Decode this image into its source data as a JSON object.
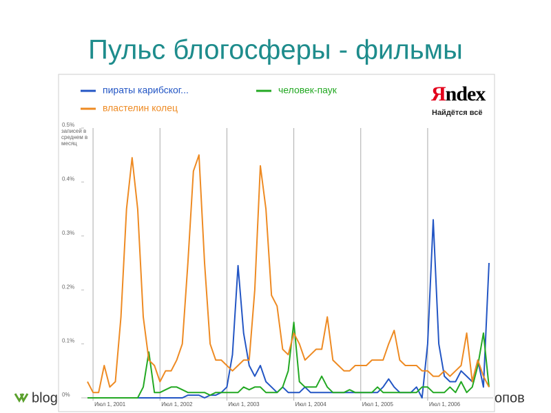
{
  "title": "Пульс блогосферы - фильмы",
  "footer": {
    "left": "blog",
    "right": "опов"
  },
  "logo": {
    "brand": "Яndex",
    "slogan": "Найдётся всё"
  },
  "chart_data": {
    "type": "line",
    "y_label": "записей в среднем в месяц",
    "categories": [
      null,
      "Июл 1, 2001",
      null,
      null,
      null,
      null,
      null,
      null,
      null,
      null,
      null,
      null,
      null,
      "Июл 1, 2002",
      null,
      null,
      null,
      null,
      null,
      null,
      null,
      null,
      null,
      null,
      null,
      "Июл 1, 2003",
      null,
      null,
      null,
      null,
      null,
      null,
      null,
      null,
      null,
      null,
      null,
      "Июл 1, 2004",
      null,
      null,
      null,
      null,
      null,
      null,
      null,
      null,
      null,
      null,
      null,
      "Июл 1, 2005",
      null,
      null,
      null,
      null,
      null,
      null,
      null,
      null,
      null,
      null,
      null,
      "Июл 1, 2006",
      null,
      null,
      null,
      null,
      null,
      null,
      null,
      null,
      null,
      null,
      null
    ],
    "series": [
      {
        "name": "пираты карибског...",
        "color": "#2255c4",
        "values": [
          0,
          0,
          0,
          0,
          0,
          0,
          0,
          0,
          0,
          0,
          0,
          0,
          0,
          0,
          0,
          0,
          0,
          0,
          0.005,
          0.005,
          0.005,
          0,
          0.005,
          0.005,
          0.01,
          0.02,
          0.08,
          0.245,
          0.12,
          0.06,
          0.04,
          0.06,
          0.03,
          0.02,
          0.01,
          0.02,
          0.01,
          0.01,
          0.01,
          0.02,
          0.01,
          0.01,
          0.01,
          0.01,
          0.01,
          0.01,
          0.01,
          0.01,
          0.01,
          0.01,
          0.01,
          0.01,
          0.01,
          0.02,
          0.035,
          0.02,
          0.01,
          0.01,
          0.01,
          0.02,
          0,
          0.1,
          0.33,
          0.1,
          0.04,
          0.03,
          0.03,
          0.05,
          0.04,
          0.03,
          0.07,
          0.02,
          0.25
        ]
      },
      {
        "name": "человек-паук",
        "color": "#22a822",
        "values": [
          0,
          0,
          0,
          0,
          0,
          0,
          0,
          0,
          0,
          0,
          0.02,
          0.085,
          0.01,
          0.01,
          0.015,
          0.02,
          0.02,
          0.015,
          0.01,
          0.01,
          0.01,
          0.01,
          0.005,
          0.01,
          0.01,
          0.01,
          0.01,
          0.01,
          0.02,
          0.015,
          0.02,
          0.02,
          0.01,
          0.01,
          0.01,
          0.02,
          0.05,
          0.14,
          0.03,
          0.02,
          0.02,
          0.02,
          0.04,
          0.02,
          0.01,
          0.01,
          0.01,
          0.015,
          0.01,
          0.01,
          0.01,
          0.01,
          0.02,
          0.01,
          0.01,
          0.01,
          0.01,
          0.01,
          0.01,
          0.01,
          0.02,
          0.02,
          0.01,
          0.01,
          0.01,
          0.02,
          0.01,
          0.03,
          0.01,
          0.02,
          0.06,
          0.12,
          0.02
        ]
      },
      {
        "name": "властелин колец",
        "color": "#ee8a22",
        "values": [
          0.03,
          0.01,
          0.01,
          0.06,
          0.02,
          0.03,
          0.15,
          0.35,
          0.445,
          0.35,
          0.15,
          0.07,
          0.06,
          0.03,
          0.05,
          0.05,
          0.07,
          0.1,
          0.25,
          0.42,
          0.45,
          0.25,
          0.1,
          0.07,
          0.07,
          0.06,
          0.05,
          0.06,
          0.07,
          0.07,
          0.2,
          0.43,
          0.35,
          0.19,
          0.17,
          0.09,
          0.08,
          0.12,
          0.1,
          0.07,
          0.08,
          0.09,
          0.09,
          0.15,
          0.07,
          0.06,
          0.05,
          0.05,
          0.06,
          0.06,
          0.06,
          0.07,
          0.07,
          0.07,
          0.1,
          0.125,
          0.07,
          0.06,
          0.06,
          0.06,
          0.05,
          0.05,
          0.04,
          0.04,
          0.05,
          0.04,
          0.05,
          0.06,
          0.12,
          0.03,
          0.07,
          0.04,
          0.02
        ]
      }
    ],
    "ylim": [
      0,
      0.5
    ],
    "yticks": [
      {
        "value": 0,
        "label": "0%"
      },
      {
        "value": 0.1,
        "label": "0.1%"
      },
      {
        "value": 0.2,
        "label": "0.2%"
      },
      {
        "value": 0.3,
        "label": "0.3%"
      },
      {
        "value": 0.4,
        "label": "0.4%"
      },
      {
        "value": 0.5,
        "label": "0.5%"
      }
    ],
    "grid": true
  }
}
